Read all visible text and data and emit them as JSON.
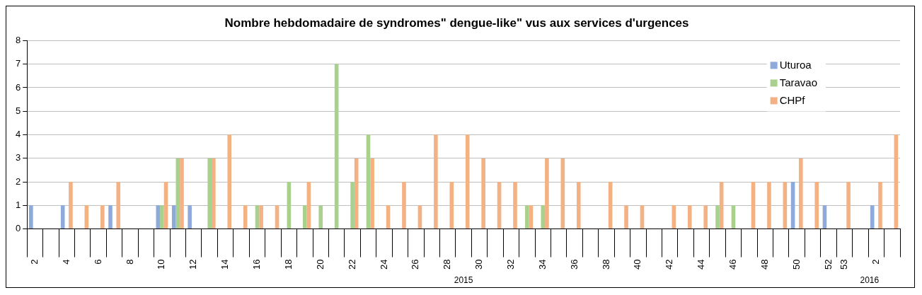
{
  "chart_data": {
    "type": "bar",
    "title": "Nombre hebdomadaire de syndromes\" dengue-like\" vus aux services d'urgences",
    "categories": [
      "2",
      null,
      "4",
      null,
      "6",
      null,
      "8",
      null,
      "10",
      null,
      "12",
      null,
      "14",
      null,
      "16",
      null,
      "18",
      null,
      "20",
      null,
      "22",
      null,
      "24",
      null,
      "26",
      null,
      "28",
      null,
      "30",
      null,
      "32",
      null,
      "34",
      null,
      "36",
      null,
      "38",
      null,
      "40",
      null,
      "42",
      null,
      "44",
      null,
      "46",
      null,
      "48",
      null,
      "50",
      null,
      "52",
      "53",
      null,
      "2",
      null
    ],
    "series": [
      {
        "name": "Uturoa",
        "color": "#8eaadb",
        "values": [
          1,
          0,
          1,
          0,
          0,
          1,
          0,
          0,
          1,
          1,
          1,
          0,
          0,
          0,
          0,
          0,
          0,
          0,
          0,
          0,
          0,
          0,
          0,
          0,
          0,
          0,
          0,
          0,
          0,
          0,
          0,
          0,
          0,
          0,
          0,
          0,
          0,
          0,
          0,
          0,
          0,
          0,
          0,
          0,
          0,
          0,
          0,
          0,
          2,
          0,
          1,
          0,
          0,
          1,
          0
        ]
      },
      {
        "name": "Taravao",
        "color": "#a9d18e",
        "values": [
          0,
          0,
          0,
          0,
          0,
          0,
          0,
          0,
          1,
          3,
          0,
          3,
          0,
          0,
          1,
          0,
          2,
          1,
          1,
          7,
          2,
          4,
          0,
          0,
          0,
          0,
          0,
          0,
          0,
          0,
          0,
          1,
          1,
          0,
          0,
          0,
          0,
          0,
          0,
          0,
          0,
          0,
          0,
          1,
          1,
          0,
          0,
          0,
          0,
          0,
          0,
          0,
          0,
          0,
          0
        ]
      },
      {
        "name": "CHPf",
        "color": "#f4b183",
        "values": [
          0,
          0,
          2,
          1,
          1,
          2,
          0,
          0,
          2,
          3,
          0,
          3,
          4,
          1,
          1,
          1,
          0,
          2,
          0,
          0,
          3,
          3,
          1,
          2,
          1,
          4,
          2,
          4,
          3,
          2,
          2,
          1,
          3,
          3,
          2,
          0,
          2,
          1,
          1,
          0,
          1,
          1,
          1,
          2,
          0,
          2,
          2,
          2,
          3,
          2,
          0,
          2,
          0,
          2,
          4
        ]
      }
    ],
    "ylim": [
      0,
      8
    ],
    "yticks": [
      0,
      1,
      2,
      3,
      4,
      5,
      6,
      7,
      8
    ],
    "grid": "y",
    "legend": "top right",
    "annotations": [
      "2015",
      "2016"
    ]
  }
}
